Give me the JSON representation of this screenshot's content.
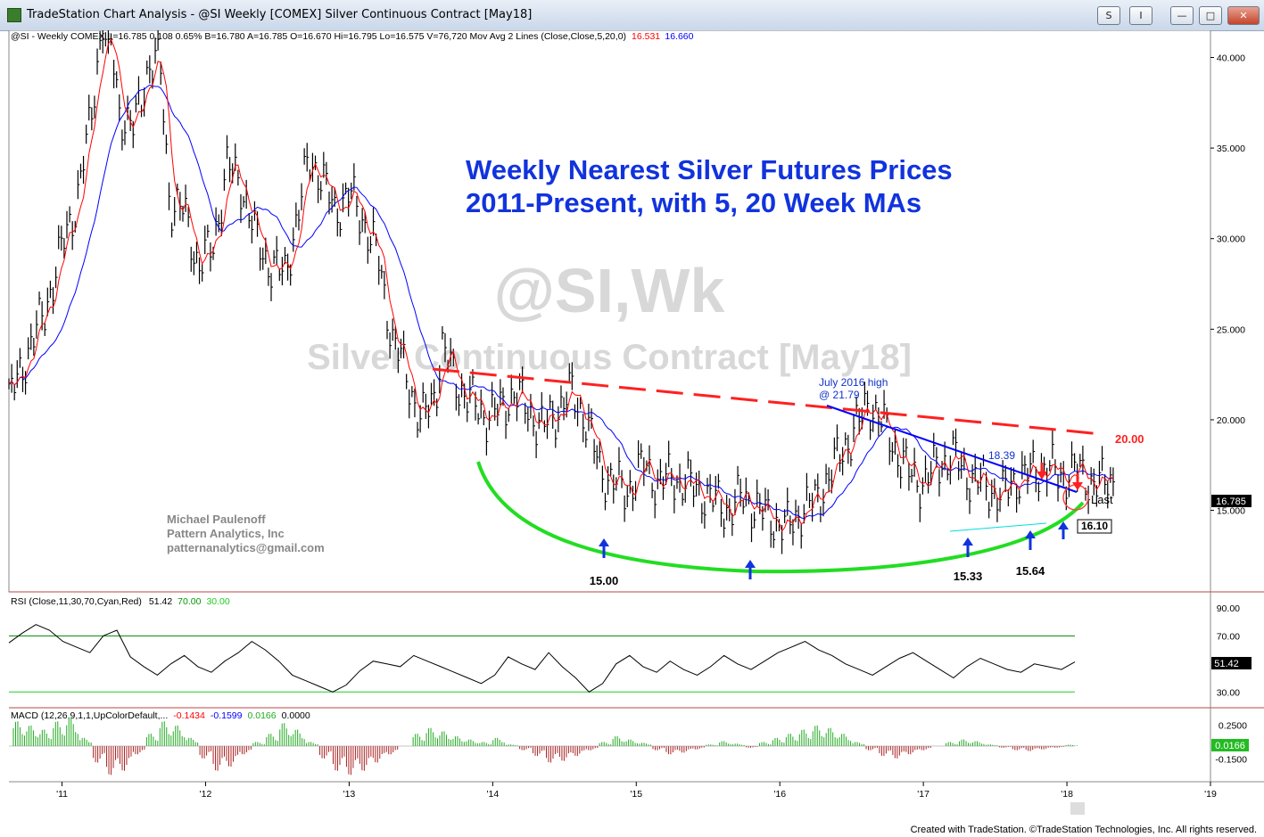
{
  "window": {
    "title": "TradeStation Chart Analysis - @SI Weekly [COMEX] Silver Continuous Contract [May18]",
    "buttons": [
      "S",
      "I",
      "",
      "",
      ""
    ]
  },
  "header_line": {
    "text": "@SI - Weekly  COMEX  L=16.785  0.108  0.65%  B=16.780  A=16.785  O=16.670  Hi=16.795  Lo=16.575  V=76,720  Mov Avg 2 Lines (Close,Close,5,20,0)",
    "ma_fast_value": "16.531",
    "ma_slow_value": "16.660"
  },
  "title_annotation": [
    "Weekly Nearest Silver Futures Prices",
    "2011-Present, with 5, 20 Week MAs"
  ],
  "watermark": {
    "symbol": "@SI,Wk",
    "name": "Silver Continuous Contract [May18]"
  },
  "author_note": [
    "Michael Paulenoff",
    "Pattern Analytics, Inc",
    "patternanalytics@gmail.com"
  ],
  "annotations": {
    "july_high": [
      "July 2016 high",
      "@ 21.79"
    ],
    "downtrend_label": "18.39",
    "resistance_label": "20.00",
    "lows": [
      "15.00",
      "15.33",
      "15.64"
    ],
    "support_box": "16.10",
    "last_label": "Last",
    "last_price_box": "16.785"
  },
  "rsi_header": {
    "text": "RSI (Close,11,30,70,Cyan,Red)",
    "value": "51.42",
    "ob": "70.00",
    "os": "30.00"
  },
  "rsi_value_box": "51.42",
  "macd_header": {
    "text": "MACD (12,26,9,1,1,UpColorDefault,...",
    "v1": "-0.1434",
    "v2": "-0.1599",
    "v3": "0.0166",
    "v4": "0.0000"
  },
  "macd_value_box": "0.0166",
  "footer": "Created with TradeStation. ©TradeStation Technologies, Inc. All rights reserved.",
  "colors": {
    "price_bars": "#000000",
    "ma_fast": "#ff0000",
    "ma_slow": "#0000ff",
    "resistance": "#ff2020",
    "support_arc": "#22dd22",
    "trendline": "#0000ff",
    "annotation_text": "#1133cc",
    "rsi_line": "#000000",
    "rsi_ob": "#ff0000",
    "rsi_os": "#00cccc",
    "macd_up": "#22aa22",
    "macd_down": "#aa2222"
  },
  "chart_data": [
    {
      "type": "line",
      "title": "Weekly Nearest Silver Futures Prices 2011-Present, with 5, 20 Week MAs",
      "xlabel": "",
      "ylabel": "",
      "x_tick_labels": [
        "'11",
        "'12",
        "'13",
        "'14",
        "'15",
        "'16",
        "'17",
        "'18",
        "'19"
      ],
      "y_tick_labels": [
        "40.000",
        "35.000",
        "30.000",
        "25.000",
        "20.000",
        "15.000"
      ],
      "ylim": [
        10.5,
        41.5
      ],
      "xlim": [
        2010.63,
        2019.0
      ],
      "series": [
        {
          "name": "Close",
          "x": [
            2010.63,
            2010.75,
            2010.88,
            2011.0,
            2011.1,
            2011.2,
            2011.3,
            2011.4,
            2011.5,
            2011.6,
            2011.68,
            2011.75,
            2011.85,
            2011.95,
            2012.05,
            2012.15,
            2012.25,
            2012.35,
            2012.45,
            2012.55,
            2012.65,
            2012.72,
            2012.8,
            2012.9,
            2013.0,
            2013.1,
            2013.2,
            2013.3,
            2013.4,
            2013.5,
            2013.6,
            2013.65,
            2013.75,
            2013.85,
            2013.95,
            2014.05,
            2014.15,
            2014.25,
            2014.35,
            2014.45,
            2014.55,
            2014.65,
            2014.75,
            2014.85,
            2014.93,
            2015.05,
            2015.15,
            2015.25,
            2015.35,
            2015.45,
            2015.55,
            2015.65,
            2015.75,
            2015.85,
            2015.95,
            2016.05,
            2016.15,
            2016.25,
            2016.35,
            2016.45,
            2016.55,
            2016.62,
            2016.7,
            2016.8,
            2016.9,
            2017.0,
            2017.1,
            2017.2,
            2017.3,
            2017.4,
            2017.5,
            2017.55,
            2017.65,
            2017.75,
            2017.85,
            2017.95,
            2018.05,
            2018.15,
            2018.25,
            2018.33
          ],
          "values": [
            21.0,
            23.5,
            26.0,
            29.5,
            32.0,
            36.5,
            43.5,
            37.0,
            36.0,
            39.5,
            40.0,
            32.0,
            31.5,
            28.5,
            29.5,
            34.0,
            33.0,
            30.0,
            28.5,
            28.0,
            31.5,
            34.5,
            33.5,
            31.5,
            32.5,
            31.0,
            29.0,
            24.5,
            22.5,
            19.8,
            21.5,
            24.0,
            22.0,
            21.0,
            20.2,
            20.5,
            21.5,
            20.5,
            19.5,
            20.5,
            21.5,
            20.0,
            17.2,
            16.5,
            16.0,
            17.5,
            16.5,
            16.8,
            16.5,
            16.0,
            15.5,
            15.0,
            15.8,
            15.0,
            14.5,
            14.0,
            15.0,
            15.5,
            17.0,
            18.5,
            19.8,
            21.0,
            20.0,
            18.5,
            17.0,
            16.5,
            17.5,
            18.0,
            17.0,
            16.5,
            16.0,
            15.8,
            16.8,
            17.0,
            17.5,
            16.8,
            17.2,
            16.7,
            16.4,
            16.78
          ]
        },
        {
          "name": "MA 5",
          "x": [],
          "values": []
        },
        {
          "name": "MA 20",
          "x": [],
          "values": []
        }
      ]
    },
    {
      "type": "line",
      "title": "RSI (Close,11,30,70,Cyan,Red)",
      "ylim": [
        20,
        95
      ],
      "y_tick_labels": [
        "90.00",
        "70.00",
        "30.00"
      ],
      "series": [
        {
          "name": "RSI",
          "values": [
            65,
            72,
            78,
            74,
            66,
            62,
            58,
            70,
            74,
            55,
            48,
            42,
            50,
            56,
            48,
            44,
            52,
            58,
            66,
            60,
            52,
            42,
            38,
            34,
            30,
            35,
            45,
            52,
            50,
            48,
            56,
            52,
            48,
            44,
            40,
            36,
            42,
            55,
            50,
            46,
            58,
            48,
            40,
            30,
            36,
            50,
            56,
            48,
            44,
            52,
            46,
            42,
            48,
            56,
            50,
            46,
            52,
            58,
            62,
            66,
            60,
            56,
            50,
            46,
            42,
            48,
            54,
            58,
            52,
            46,
            40,
            48,
            54,
            50,
            46,
            44,
            50,
            48,
            46,
            51.42
          ]
        }
      ]
    },
    {
      "type": "bar",
      "title": "MACD (12,26,9,1,1,UpColorDefault,...",
      "ylim": [
        -0.4,
        0.4
      ],
      "y_tick_labels": [
        "0.2500",
        "-0.1500"
      ],
      "series": [
        {
          "name": "MACD Diff",
          "values": [
            0.3,
            0.25,
            0.2,
            0.3,
            0.35,
            0.1,
            -0.2,
            -0.35,
            -0.3,
            -0.1,
            0.15,
            0.3,
            0.25,
            0.1,
            -0.15,
            -0.3,
            -0.25,
            -0.1,
            0.05,
            0.15,
            0.28,
            0.2,
            0.05,
            -0.15,
            -0.3,
            -0.35,
            -0.3,
            -0.2,
            -0.1,
            0.0,
            0.15,
            0.22,
            0.18,
            0.12,
            0.08,
            0.05,
            0.1,
            0.02,
            -0.05,
            -0.12,
            -0.2,
            -0.18,
            -0.12,
            -0.05,
            0.05,
            0.12,
            0.08,
            0.04,
            -0.05,
            -0.1,
            -0.08,
            -0.04,
            0.02,
            0.06,
            0.03,
            -0.02,
            0.05,
            0.1,
            0.15,
            0.2,
            0.25,
            0.22,
            0.15,
            0.05,
            -0.05,
            -0.12,
            -0.15,
            -0.1,
            -0.05,
            0.0,
            0.05,
            0.08,
            0.06,
            0.02,
            -0.02,
            -0.05,
            -0.06,
            -0.04,
            -0.02,
            0.0166
          ]
        }
      ]
    }
  ]
}
